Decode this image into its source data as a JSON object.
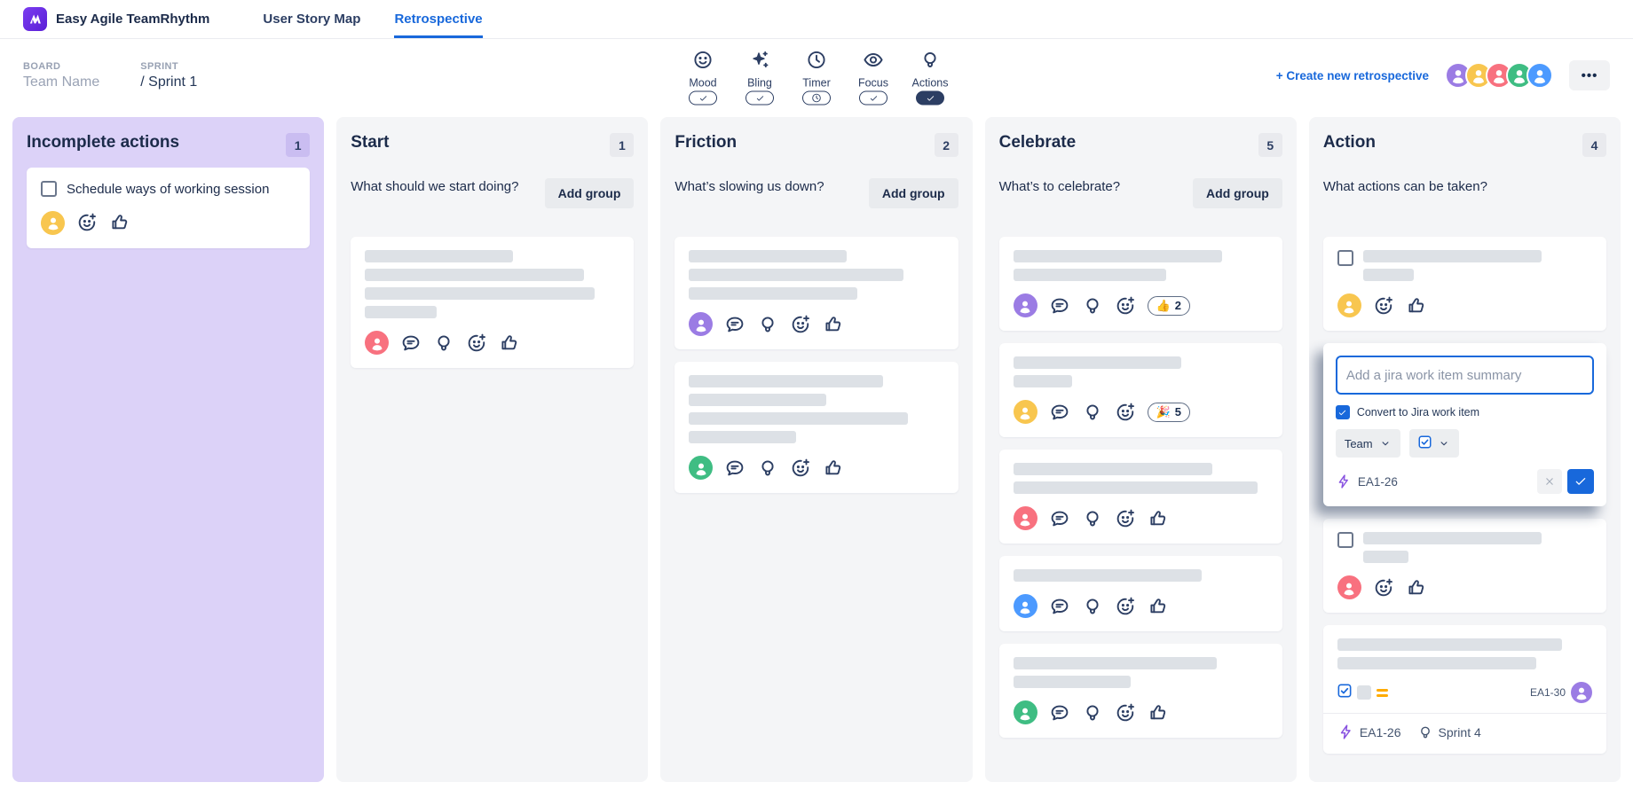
{
  "navbar": {
    "app_name": "Easy Agile TeamRhythm",
    "tabs": [
      {
        "label": "User Story Map",
        "active": false
      },
      {
        "label": "Retrospective",
        "active": true
      }
    ]
  },
  "header": {
    "board_label": "BOARD",
    "board_value": "Team Name",
    "sprint_label": "SPRINT",
    "sprint_value": "/ Sprint 1",
    "toolbar": [
      {
        "id": "mood",
        "label": "Mood",
        "icon": "smiley-icon",
        "toggle": "check"
      },
      {
        "id": "bling",
        "label": "Bling",
        "icon": "sparkles-icon",
        "toggle": "check"
      },
      {
        "id": "timer",
        "label": "Timer",
        "icon": "clock-icon",
        "toggle": "clock"
      },
      {
        "id": "focus",
        "label": "Focus",
        "icon": "eye-icon",
        "toggle": "check"
      },
      {
        "id": "actions",
        "label": "Actions",
        "icon": "bulb-icon",
        "toggle": "check-filled"
      }
    ],
    "create_link": "+ Create new retrospective",
    "avatar_colors": [
      "#9b7ce4",
      "#f8c64f",
      "#f8717f",
      "#3fbd83",
      "#4c9aff"
    ],
    "more_label": "•••",
    "accent_blue": "#1868db",
    "icon_navy": "#2c3e63"
  },
  "columns": [
    {
      "title": "Incomplete actions",
      "count": "1",
      "theme": "purple",
      "subtitle": null,
      "add_group_label": null,
      "cards": [
        {
          "type": "action-text",
          "text": "Schedule ways of working session",
          "avatar": "#f8c64f",
          "icons": [
            "emoji-add-icon",
            "thumbs-up-icon"
          ]
        }
      ]
    },
    {
      "title": "Start",
      "count": "1",
      "theme": "gray",
      "subtitle": "What should we start doing?",
      "add_group_label": "Add group",
      "cards": [
        {
          "type": "placeholder",
          "bars": [
            58,
            86,
            90,
            28
          ],
          "avatar": "#f8717f",
          "icons": [
            "comment-icon",
            "bulb-icon",
            "emoji-add-icon",
            "thumbs-up-icon"
          ]
        }
      ]
    },
    {
      "title": "Friction",
      "count": "2",
      "theme": "gray",
      "subtitle": "What’s slowing us down?",
      "add_group_label": "Add group",
      "cards": [
        {
          "type": "placeholder",
          "bars": [
            62,
            84,
            66
          ],
          "avatar": "#9b7ce4",
          "icons": [
            "comment-icon",
            "bulb-icon",
            "emoji-add-icon",
            "thumbs-up-icon"
          ]
        },
        {
          "type": "placeholder",
          "bars": [
            76,
            54,
            86,
            42
          ],
          "avatar": "#3fbd83",
          "icons": [
            "comment-icon",
            "bulb-icon",
            "emoji-add-icon",
            "thumbs-up-icon"
          ]
        }
      ]
    },
    {
      "title": "Celebrate",
      "count": "5",
      "theme": "gray",
      "subtitle": "What’s to celebrate?",
      "add_group_label": "Add group",
      "cards": [
        {
          "type": "placeholder",
          "bars": [
            82,
            60
          ],
          "avatar": "#9b7ce4",
          "icons": [
            "comment-icon",
            "bulb-icon",
            "emoji-add-icon"
          ],
          "reaction": {
            "emoji": "👍",
            "count": "2"
          }
        },
        {
          "type": "placeholder",
          "bars": [
            66,
            23
          ],
          "avatar": "#f8c64f",
          "icons": [
            "comment-icon",
            "bulb-icon",
            "emoji-add-icon"
          ],
          "reaction": {
            "emoji": "🎉",
            "count": "5"
          }
        },
        {
          "type": "placeholder",
          "bars": [
            78,
            96
          ],
          "avatar": "#f8717f",
          "icons": [
            "comment-icon",
            "bulb-icon",
            "emoji-add-icon",
            "thumbs-up-icon"
          ]
        },
        {
          "type": "placeholder",
          "bars": [
            74
          ],
          "avatar": "#4c9aff",
          "icons": [
            "comment-icon",
            "bulb-icon",
            "emoji-add-icon",
            "thumbs-up-icon"
          ]
        },
        {
          "type": "placeholder",
          "bars": [
            80,
            46
          ],
          "avatar": "#3fbd83",
          "icons": [
            "comment-icon",
            "bulb-icon",
            "emoji-add-icon",
            "thumbs-up-icon"
          ]
        }
      ]
    },
    {
      "title": "Action",
      "count": "4",
      "theme": "gray",
      "subtitle": "What actions can be taken?",
      "add_group_label": null,
      "cards": [
        {
          "type": "placeholder",
          "checkbox": true,
          "bars": [
            78,
            22
          ],
          "avatar": "#f8c64f",
          "icons": [
            "emoji-add-icon",
            "thumbs-up-icon"
          ]
        },
        {
          "type": "edit-form",
          "input_placeholder": "Add a jira work item summary",
          "convert_label": "Convert to Jira work item",
          "team_dropdown_label": "Team",
          "issue_key": "EA1-26"
        },
        {
          "type": "placeholder",
          "checkbox": true,
          "bars": [
            78,
            20
          ],
          "avatar": "#f8717f",
          "icons": [
            "emoji-add-icon",
            "thumbs-up-icon"
          ]
        },
        {
          "type": "jira-card",
          "bars": [
            88,
            78
          ],
          "issue_key_right": "EA1-30",
          "assignee_color": "#9b7ce4",
          "footer_issue_key": "EA1-26",
          "footer_sprint": "Sprint 4"
        }
      ]
    }
  ]
}
